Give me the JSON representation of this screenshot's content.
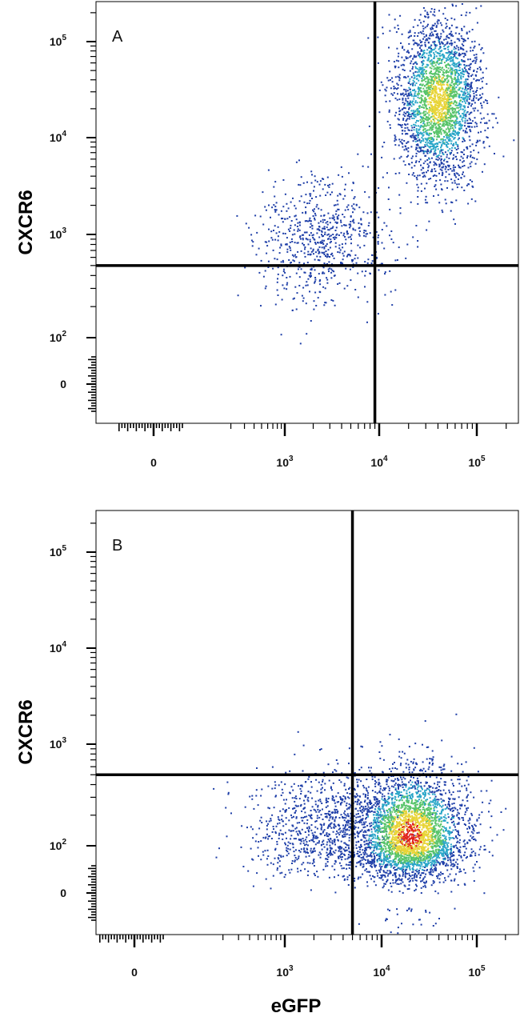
{
  "chart_data": [
    {
      "type": "scatter",
      "panel_label": "A",
      "xlabel": "eGFP",
      "ylabel": "CXCR6",
      "x_ticks": [
        {
          "value": 0,
          "base": "0",
          "exp": ""
        },
        {
          "value": 1000,
          "base": "10",
          "exp": "3"
        },
        {
          "value": 10000,
          "base": "10",
          "exp": "4"
        },
        {
          "value": 100000,
          "base": "10",
          "exp": "5"
        }
      ],
      "y_ticks": [
        {
          "value": 0,
          "base": "0",
          "exp": ""
        },
        {
          "value": 100,
          "base": "10",
          "exp": "2"
        },
        {
          "value": 1000,
          "base": "10",
          "exp": "3"
        },
        {
          "value": 10000,
          "base": "10",
          "exp": "4"
        },
        {
          "value": 100000,
          "base": "10",
          "exp": "5"
        }
      ],
      "quadrant_gate": {
        "x": 9000,
        "y": 500
      },
      "populations": [
        {
          "x_center": 2500,
          "y_center": 900,
          "x_spread": 0.35,
          "y_spread": 0.32,
          "count": 700,
          "density": 0.15
        },
        {
          "x_center": 40000,
          "y_center": 25000,
          "x_spread": 0.22,
          "y_spread": 0.42,
          "count": 2600,
          "density": 0.7
        }
      ],
      "grid": false,
      "scale": "biexponential"
    },
    {
      "type": "scatter",
      "panel_label": "B",
      "xlabel": "eGFP",
      "ylabel": "CXCR6",
      "x_ticks": [
        {
          "value": 0,
          "base": "0",
          "exp": ""
        },
        {
          "value": 1000,
          "base": "10",
          "exp": "3"
        },
        {
          "value": 10000,
          "base": "10",
          "exp": "4"
        },
        {
          "value": 100000,
          "base": "10",
          "exp": "5"
        }
      ],
      "y_ticks": [
        {
          "value": 0,
          "base": "0",
          "exp": ""
        },
        {
          "value": 100,
          "base": "10",
          "exp": "2"
        },
        {
          "value": 1000,
          "base": "10",
          "exp": "3"
        },
        {
          "value": 10000,
          "base": "10",
          "exp": "4"
        },
        {
          "value": 100000,
          "base": "10",
          "exp": "5"
        }
      ],
      "quadrant_gate": {
        "x": 5000,
        "y": 500
      },
      "populations": [
        {
          "x_center": 2500,
          "y_center": 150,
          "x_spread": 0.4,
          "y_spread": 0.3,
          "count": 900,
          "density": 0.15
        },
        {
          "x_center": 20000,
          "y_center": 130,
          "x_spread": 0.3,
          "y_spread": 0.32,
          "count": 3200,
          "density": 0.85
        }
      ],
      "grid": false,
      "scale": "biexponential"
    }
  ],
  "colors": {
    "density_low": "#1f3fa8",
    "density_mid_low": "#2aa6c8",
    "density_mid": "#58c46a",
    "density_mid_high": "#e8d437",
    "density_high": "#e0201b",
    "gate_line": "#000000",
    "frame": "#000000"
  }
}
